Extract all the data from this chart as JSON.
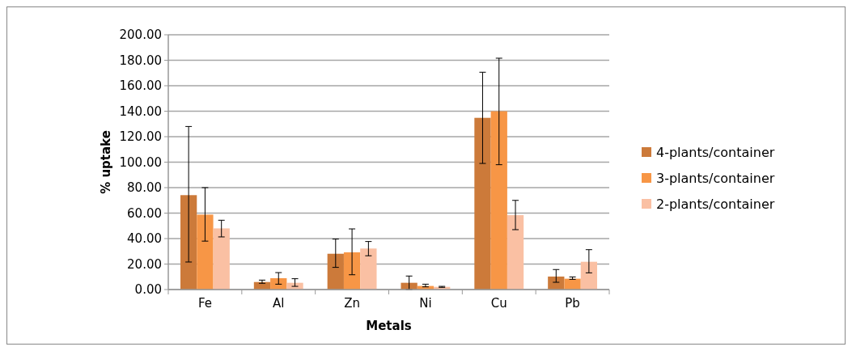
{
  "chart_data": {
    "type": "bar",
    "xlabel": "Metals",
    "ylabel": "% uptake",
    "categories": [
      "Fe",
      "Al",
      "Zn",
      "Ni",
      "Cu",
      "Pb"
    ],
    "series": [
      {
        "name": "4-plants/container",
        "color": "#cc7a3a",
        "values": [
          74.1,
          5.9,
          28.1,
          5.3,
          134.8,
          10.2
        ],
        "errors": [
          [
            21.6,
            128
          ],
          [
            4.9,
            7.4
          ],
          [
            17.4,
            39.6
          ],
          [
            0,
            10.6
          ],
          [
            99,
            170.6
          ],
          [
            5.7,
            15.7
          ]
        ]
      },
      {
        "name": "3-plants/container",
        "color": "#f79646",
        "values": [
          58.8,
          8.9,
          29.2,
          2.8,
          140,
          8.5
        ],
        "errors": [
          [
            38,
            80
          ],
          [
            4.2,
            13.3
          ],
          [
            11.6,
            47.6
          ],
          [
            2.1,
            4.2
          ],
          [
            98,
            181.6
          ],
          [
            8,
            9.9
          ]
        ]
      },
      {
        "name": "2-plants/container",
        "color": "#fac0a3",
        "values": [
          48,
          5.3,
          32.2,
          2.1,
          58.4,
          21.8
        ],
        "errors": [
          [
            41.3,
            54.4
          ],
          [
            2.5,
            8.5
          ],
          [
            26.5,
            37.7
          ],
          [
            1.7,
            2.5
          ],
          [
            47,
            70
          ],
          [
            13.1,
            31.3
          ]
        ]
      }
    ],
    "ylim": [
      0,
      200
    ],
    "yticks": [
      {
        "value": 0,
        "label": "0.00"
      },
      {
        "value": 20,
        "label": "20.00"
      },
      {
        "value": 40,
        "label": "40.00"
      },
      {
        "value": 60,
        "label": "60.00"
      },
      {
        "value": 80,
        "label": "80.00"
      },
      {
        "value": 100,
        "label": "100.00"
      },
      {
        "value": 120,
        "label": "120.00"
      },
      {
        "value": 140,
        "label": "140.00"
      },
      {
        "value": 160,
        "label": "160.00"
      },
      {
        "value": 180,
        "label": "180.00"
      },
      {
        "value": 200,
        "label": "200.00"
      }
    ],
    "grid": "y",
    "legend": "right"
  }
}
